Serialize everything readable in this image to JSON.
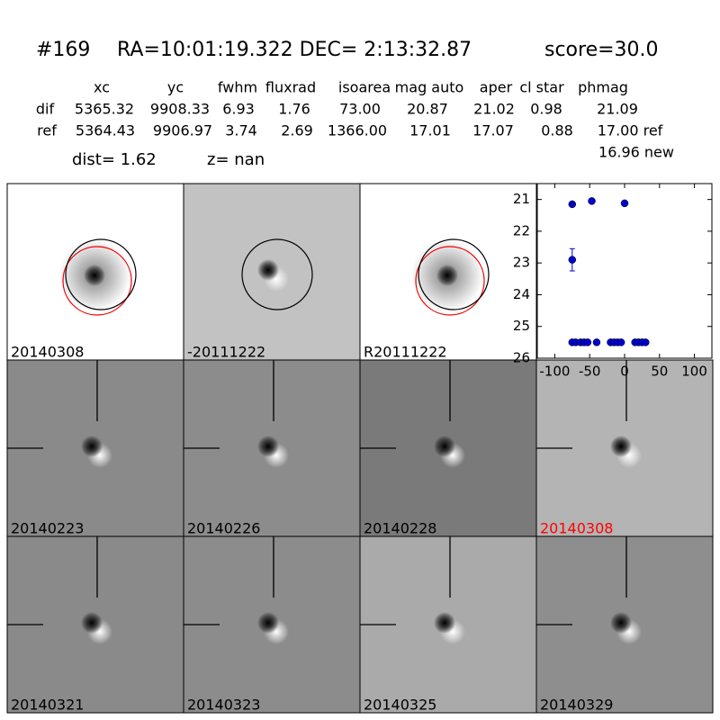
{
  "header": {
    "id": "#169",
    "coords": "RA=10:01:19.322 DEC= 2:13:32.87",
    "score": "score=30.0"
  },
  "table": {
    "columns": [
      "xc",
      "yc",
      "fwhm",
      "fluxrad",
      "isoarea",
      "mag auto",
      "aper",
      "cl star",
      "phmag"
    ],
    "rows": [
      [
        "dif",
        "5365.32",
        "9908.33",
        "6.93",
        "1.76",
        "73.00",
        "20.87",
        "21.02",
        "0.98",
        "21.09"
      ],
      [
        "ref",
        "5364.43",
        "9906.97",
        "3.74",
        "2.69",
        "1366.00",
        "17.01",
        "17.07",
        "0.88",
        "17.00 ref"
      ]
    ],
    "extra": "16.96 new"
  },
  "dist": "dist=  1.62",
  "z": "z=   nan",
  "panels": [
    {
      "label": "20140308"
    },
    {
      "label": "-20111222"
    },
    {
      "label": "R20111222"
    },
    {
      "label": "20140223"
    },
    {
      "label": "20140226"
    },
    {
      "label": "20140228"
    },
    {
      "label": "20140308",
      "color": "#ff0000"
    },
    {
      "label": "20140321"
    },
    {
      "label": "20140323"
    },
    {
      "label": "20140325"
    },
    {
      "label": "20140329"
    }
  ],
  "plot": {
    "type": "scatter",
    "color": "#0000cc",
    "xlim": [
      -125,
      125
    ],
    "ylim": [
      26,
      20.5
    ],
    "xticks": [
      -100,
      -50,
      0,
      50,
      100
    ],
    "yticks": [
      21,
      22,
      23,
      24,
      25,
      26
    ],
    "points": [
      {
        "x": -75,
        "y": 21.15
      },
      {
        "x": -47,
        "y": 21.05
      },
      {
        "x": 0,
        "y": 21.12
      },
      {
        "x": -75,
        "y": 22.9,
        "err": 0.35
      },
      {
        "x": -75,
        "y": 25.5
      },
      {
        "x": -70,
        "y": 25.5
      },
      {
        "x": -63,
        "y": 25.5
      },
      {
        "x": -58,
        "y": 25.5
      },
      {
        "x": -53,
        "y": 25.5
      },
      {
        "x": -40,
        "y": 25.5
      },
      {
        "x": -20,
        "y": 25.5
      },
      {
        "x": -15,
        "y": 25.5
      },
      {
        "x": -10,
        "y": 25.5
      },
      {
        "x": -5,
        "y": 25.5
      },
      {
        "x": 15,
        "y": 25.5
      },
      {
        "x": 20,
        "y": 25.5
      },
      {
        "x": 25,
        "y": 25.5
      },
      {
        "x": 30,
        "y": 25.5
      }
    ]
  }
}
